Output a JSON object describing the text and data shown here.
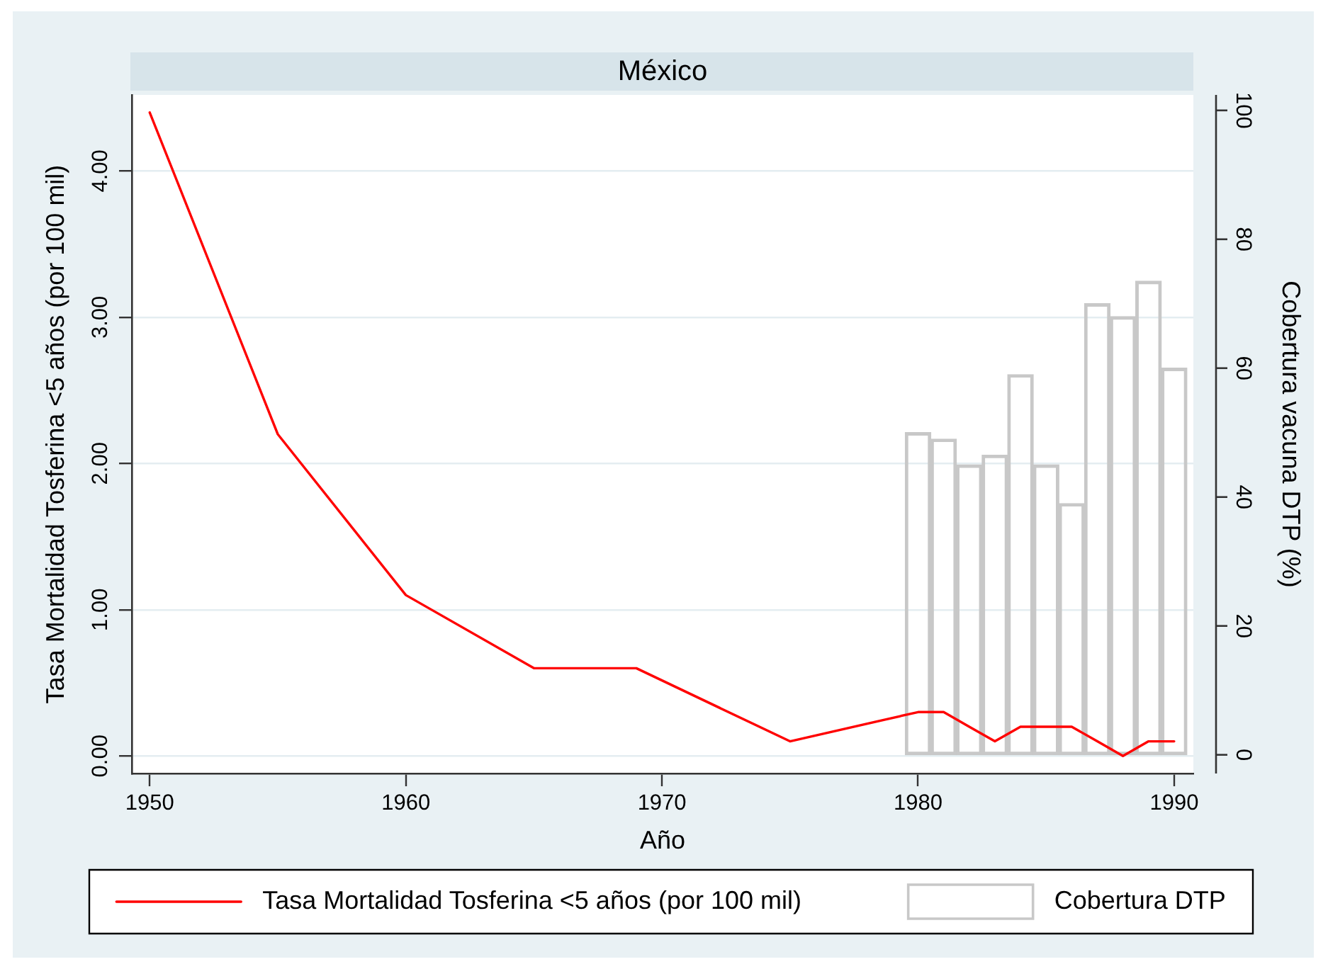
{
  "chart_data": {
    "type": "line",
    "title": "México",
    "xlabel": "Año",
    "ylabel": "Tasa Mortalidad Tosferina <5 años (por 100 mil)",
    "y2label": "Cobertura vacuna DTP (%)",
    "xlim": [
      1949.3,
      1990.75
    ],
    "xticks": [
      1950,
      1960,
      1970,
      1980,
      1990
    ],
    "ylim": [
      -0.12,
      4.52
    ],
    "yticks": [
      {
        "value": 0,
        "label": "0.00"
      },
      {
        "value": 1,
        "label": "1.00"
      },
      {
        "value": 2,
        "label": "2.00"
      },
      {
        "value": 3,
        "label": "3.00"
      },
      {
        "value": 4,
        "label": "4.00"
      }
    ],
    "y2lim": [
      -2.9,
      102.4
    ],
    "y2ticks": [
      0,
      20,
      40,
      60,
      80,
      100
    ],
    "grid": "y",
    "legend": "bottom",
    "series": [
      {
        "name": "Tasa Mortalidad Tosferina <5 años (por 100 mil)",
        "color": "#ff0000",
        "x": [
          1950,
          1955,
          1960,
          1965,
          1969,
          1975,
          1980,
          1981,
          1982,
          1983,
          1984,
          1985,
          1986,
          1987,
          1988,
          1989,
          1990
        ],
        "values": [
          4.4,
          2.2,
          1.1,
          0.6,
          0.6,
          0.1,
          0.3,
          0.3,
          0.2,
          0.1,
          0.2,
          0.2,
          0.2,
          0.1,
          0,
          0.1,
          0.1
        ]
      },
      {
        "name": "Cobertura DTP",
        "type": "bar",
        "axis": "y2",
        "color": "#c8c8c8",
        "x": [
          1980,
          1981,
          1982,
          1983,
          1984,
          1985,
          1986,
          1987,
          1988,
          1989,
          1990
        ],
        "values": [
          50,
          49,
          45,
          46.5,
          59,
          45,
          39,
          70,
          68,
          73.5,
          60
        ]
      }
    ]
  }
}
